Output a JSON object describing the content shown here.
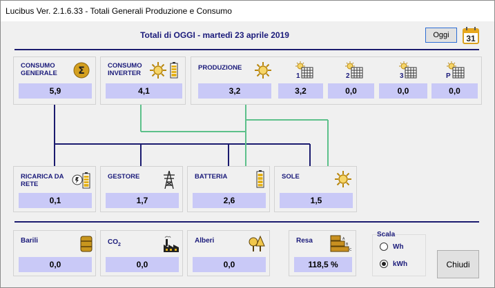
{
  "window": {
    "title": "Lucibus Ver. 2.1.6.33 -  Totali Generali Produzione e Consumo"
  },
  "header": {
    "title": "Totali di OGGI - martedì 23 aprile 2019",
    "today_button": "Oggi",
    "calendar_day": "31"
  },
  "top": {
    "consumo_generale": {
      "label_line1": "CONSUMO",
      "label_line2": "GENERALE",
      "value": "5,9"
    },
    "consumo_inverter": {
      "label_line1": "CONSUMO",
      "label_line2": "INVERTER",
      "value": "4,1"
    },
    "produzione": {
      "label": "PRODUZIONE",
      "total": "3,2",
      "inverters": [
        {
          "num": "1",
          "value": "3,2"
        },
        {
          "num": "2",
          "value": "0,0"
        },
        {
          "num": "3",
          "value": "0,0"
        },
        {
          "num": "P",
          "value": "0,0"
        }
      ]
    }
  },
  "middle": {
    "ricarica": {
      "label_line1": "RICARICA DA",
      "label_line2": "RETE",
      "value": "0,1"
    },
    "gestore": {
      "label": "GESTORE",
      "value": "1,7"
    },
    "batteria": {
      "label": "BATTERIA",
      "value": "2,6"
    },
    "sole": {
      "label": "SOLE",
      "value": "1,5"
    }
  },
  "bottom": {
    "barili": {
      "label": "Barili",
      "value": "0,0"
    },
    "co2": {
      "label": "CO",
      "sub": "2",
      "value": "0,0"
    },
    "alberi": {
      "label": "Alberi",
      "value": "0,0"
    },
    "resa": {
      "label": "Resa",
      "value": "118,5 %",
      "bar_letters": [
        "A",
        "B",
        "C"
      ]
    }
  },
  "scala": {
    "title": "Scala",
    "options": [
      "Wh",
      "kWh"
    ],
    "selected": "kWh"
  },
  "close_button": "Chiudi",
  "colors": {
    "value_bg": "#c9c9f7",
    "navy": "#1a1a6e",
    "green": "#5cc08a",
    "gold": "#c8961e"
  }
}
